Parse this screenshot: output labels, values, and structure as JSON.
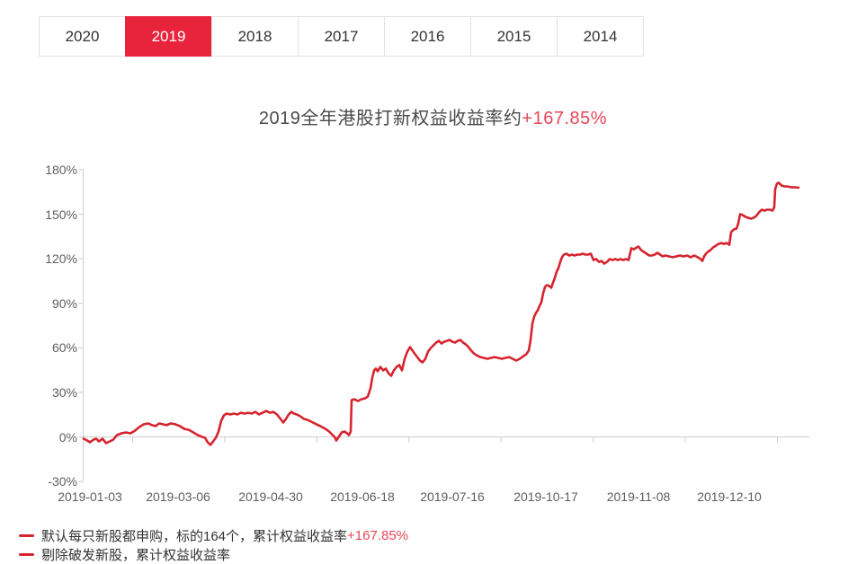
{
  "tabs": {
    "items": [
      {
        "label": "2020",
        "active": false
      },
      {
        "label": "2019",
        "active": true
      },
      {
        "label": "2018",
        "active": false
      },
      {
        "label": "2017",
        "active": false
      },
      {
        "label": "2016",
        "active": false
      },
      {
        "label": "2015",
        "active": false
      },
      {
        "label": "2014",
        "active": false
      }
    ]
  },
  "title": {
    "text": "2019全年港股打新权益收益率约",
    "value": "+167.85%"
  },
  "legend": {
    "items": [
      {
        "label": "默认每只新股都申购，标的164个，累计权益收益率",
        "value": "+167.85%",
        "partial": false
      },
      {
        "label": "剔除破发新股，累计权益收益率",
        "value": "",
        "partial": true
      }
    ]
  },
  "colors": {
    "accent_red": "#e8243d",
    "line_red": "#d6242f",
    "value_red": "#e64659",
    "axis_gray": "#cccccc",
    "text_dark": "#333333",
    "text_axis": "#5f5f5f"
  },
  "chart_data": {
    "type": "line",
    "title": "2019全年港股打新权益收益率约+167.85%",
    "series_name": "默认每只新股都申购，标的164个，累计权益收益率+167.85%",
    "final_value_pct": 167.85,
    "grid": false,
    "legend_position": "bottom-left",
    "y_axis": {
      "tick_labels": [
        "180%",
        "150%",
        "120%",
        "90%",
        "60%",
        "30%",
        "0%",
        "-30%"
      ],
      "min": -30,
      "max": 180,
      "step": 30,
      "unit": "%"
    },
    "x_axis": {
      "labels": [
        "2019-01-03",
        "2019-03-06",
        "2019-04-30",
        "2019-06-18",
        "2019-07-16",
        "2019-10-17",
        "2019-11-08",
        "2019-12-10"
      ]
    },
    "series": [
      {
        "name": "累计权益收益率",
        "color": "#d6242f",
        "x_unit": "plot-px",
        "y_unit": "percent",
        "points": [
          [
            93,
            -1.2
          ],
          [
            97,
            -2.4
          ],
          [
            100,
            -3.6
          ],
          [
            104,
            -1.8
          ],
          [
            107,
            -1.2
          ],
          [
            110,
            -3.0
          ],
          [
            114,
            -1.2
          ],
          [
            118,
            -4.2
          ],
          [
            122,
            -3.0
          ],
          [
            126,
            -1.8
          ],
          [
            130,
            1.2
          ],
          [
            135,
            2.4
          ],
          [
            140,
            3.0
          ],
          [
            145,
            2.4
          ],
          [
            150,
            4.2
          ],
          [
            155,
            6.7
          ],
          [
            160,
            8.5
          ],
          [
            165,
            9.1
          ],
          [
            169,
            7.9
          ],
          [
            173,
            7.3
          ],
          [
            177,
            9.1
          ],
          [
            181,
            8.5
          ],
          [
            185,
            7.9
          ],
          [
            190,
            9.1
          ],
          [
            195,
            8.5
          ],
          [
            200,
            7.3
          ],
          [
            205,
            5.4
          ],
          [
            210,
            4.8
          ],
          [
            215,
            3.0
          ],
          [
            220,
            1.2
          ],
          [
            225,
            0
          ],
          [
            228,
            -0.6
          ],
          [
            231,
            -3.6
          ],
          [
            234,
            -5.4
          ],
          [
            237,
            -3.0
          ],
          [
            240,
            -0.6
          ],
          [
            243,
            3.6
          ],
          [
            246,
            10.9
          ],
          [
            249,
            14.5
          ],
          [
            252,
            15.7
          ],
          [
            256,
            15.1
          ],
          [
            260,
            15.7
          ],
          [
            264,
            15.1
          ],
          [
            268,
            16.3
          ],
          [
            272,
            15.7
          ],
          [
            276,
            16.3
          ],
          [
            280,
            15.7
          ],
          [
            284,
            16.9
          ],
          [
            288,
            15.1
          ],
          [
            292,
            16.3
          ],
          [
            296,
            17.5
          ],
          [
            300,
            16.3
          ],
          [
            304,
            16.9
          ],
          [
            308,
            15.1
          ],
          [
            312,
            12.1
          ],
          [
            315,
            9.7
          ],
          [
            318,
            12.1
          ],
          [
            321,
            15.1
          ],
          [
            324,
            16.9
          ],
          [
            327,
            15.7
          ],
          [
            330,
            15.1
          ],
          [
            334,
            13.9
          ],
          [
            338,
            12.1
          ],
          [
            342,
            11.5
          ],
          [
            346,
            10.3
          ],
          [
            350,
            9.1
          ],
          [
            354,
            7.9
          ],
          [
            358,
            6.7
          ],
          [
            362,
            5.4
          ],
          [
            366,
            3.6
          ],
          [
            369,
            1.8
          ],
          [
            372,
            0
          ],
          [
            374,
            -2.4
          ],
          [
            376,
            -0.6
          ],
          [
            378,
            1.2
          ],
          [
            380,
            3.0
          ],
          [
            383,
            3.6
          ],
          [
            386,
            2.4
          ],
          [
            388,
            1.2
          ],
          [
            390,
            3.6
          ],
          [
            391,
            24.8
          ],
          [
            394,
            25.4
          ],
          [
            398,
            24.2
          ],
          [
            402,
            25.4
          ],
          [
            406,
            26.0
          ],
          [
            409,
            27.2
          ],
          [
            412,
            32.7
          ],
          [
            414,
            39.9
          ],
          [
            416,
            44.8
          ],
          [
            418,
            46.0
          ],
          [
            420,
            44.2
          ],
          [
            423,
            47.2
          ],
          [
            426,
            44.8
          ],
          [
            429,
            46.0
          ],
          [
            432,
            42.9
          ],
          [
            435,
            41.1
          ],
          [
            438,
            44.8
          ],
          [
            441,
            47.2
          ],
          [
            444,
            48.4
          ],
          [
            447,
            44.8
          ],
          [
            450,
            52.6
          ],
          [
            453,
            57.5
          ],
          [
            456,
            60.5
          ],
          [
            458,
            58.7
          ],
          [
            461,
            56.2
          ],
          [
            464,
            53.8
          ],
          [
            467,
            51.4
          ],
          [
            470,
            50.2
          ],
          [
            473,
            52.6
          ],
          [
            476,
            57.5
          ],
          [
            479,
            59.9
          ],
          [
            482,
            61.7
          ],
          [
            485,
            63.5
          ],
          [
            488,
            64.7
          ],
          [
            491,
            62.9
          ],
          [
            494,
            64.1
          ],
          [
            497,
            64.7
          ],
          [
            500,
            65.3
          ],
          [
            503,
            64.1
          ],
          [
            506,
            63.5
          ],
          [
            509,
            64.7
          ],
          [
            512,
            65.3
          ],
          [
            515,
            63.5
          ],
          [
            518,
            62.3
          ],
          [
            521,
            60.5
          ],
          [
            524,
            58.1
          ],
          [
            527,
            56.2
          ],
          [
            530,
            55.0
          ],
          [
            534,
            53.8
          ],
          [
            538,
            53.2
          ],
          [
            542,
            52.6
          ],
          [
            546,
            53.2
          ],
          [
            550,
            53.8
          ],
          [
            554,
            53.2
          ],
          [
            558,
            52.6
          ],
          [
            562,
            53.2
          ],
          [
            566,
            53.8
          ],
          [
            570,
            52.6
          ],
          [
            574,
            51.4
          ],
          [
            578,
            52.6
          ],
          [
            582,
            54.4
          ],
          [
            585,
            55.6
          ],
          [
            588,
            58.1
          ],
          [
            590,
            65.3
          ],
          [
            592,
            76.2
          ],
          [
            594,
            81.0
          ],
          [
            596,
            83.5
          ],
          [
            598,
            85.3
          ],
          [
            600,
            88.3
          ],
          [
            602,
            90.7
          ],
          [
            604,
            96.8
          ],
          [
            606,
            101.0
          ],
          [
            608,
            102.2
          ],
          [
            611,
            101.6
          ],
          [
            613,
            100.4
          ],
          [
            615,
            104.0
          ],
          [
            617,
            107.1
          ],
          [
            619,
            111.3
          ],
          [
            621,
            113.7
          ],
          [
            623,
            117.9
          ],
          [
            625,
            121.0
          ],
          [
            627,
            122.8
          ],
          [
            630,
            123.4
          ],
          [
            633,
            122.2
          ],
          [
            636,
            122.8
          ],
          [
            639,
            122.2
          ],
          [
            642,
            122.8
          ],
          [
            645,
            122.8
          ],
          [
            648,
            123.4
          ],
          [
            651,
            122.8
          ],
          [
            654,
            122.8
          ],
          [
            657,
            123.4
          ],
          [
            660,
            119.1
          ],
          [
            663,
            119.8
          ],
          [
            666,
            117.9
          ],
          [
            669,
            118.5
          ],
          [
            672,
            116.7
          ],
          [
            675,
            117.9
          ],
          [
            678,
            119.8
          ],
          [
            681,
            119.1
          ],
          [
            684,
            119.8
          ],
          [
            687,
            119.1
          ],
          [
            690,
            119.8
          ],
          [
            693,
            119.1
          ],
          [
            696,
            119.8
          ],
          [
            699,
            119.1
          ],
          [
            702,
            127.0
          ],
          [
            705,
            126.4
          ],
          [
            708,
            127.6
          ],
          [
            710,
            128.2
          ],
          [
            713,
            125.8
          ],
          [
            716,
            124.6
          ],
          [
            719,
            123.4
          ],
          [
            722,
            122.2
          ],
          [
            725,
            122.2
          ],
          [
            728,
            122.8
          ],
          [
            731,
            124.0
          ],
          [
            734,
            122.8
          ],
          [
            737,
            121.6
          ],
          [
            740,
            122.2
          ],
          [
            744,
            121.6
          ],
          [
            748,
            121.0
          ],
          [
            752,
            121.6
          ],
          [
            756,
            122.2
          ],
          [
            760,
            121.6
          ],
          [
            764,
            122.2
          ],
          [
            768,
            121.0
          ],
          [
            772,
            122.2
          ],
          [
            776,
            121.0
          ],
          [
            779,
            119.8
          ],
          [
            781,
            118.5
          ],
          [
            783,
            121.6
          ],
          [
            785,
            123.4
          ],
          [
            787,
            124.6
          ],
          [
            790,
            125.8
          ],
          [
            793,
            127.6
          ],
          [
            796,
            128.8
          ],
          [
            799,
            130.0
          ],
          [
            802,
            130.6
          ],
          [
            805,
            130.0
          ],
          [
            808,
            130.6
          ],
          [
            811,
            129.4
          ],
          [
            813,
            137.9
          ],
          [
            816,
            139.7
          ],
          [
            819,
            140.3
          ],
          [
            821,
            143.9
          ],
          [
            823,
            150.0
          ],
          [
            826,
            149.4
          ],
          [
            829,
            148.2
          ],
          [
            832,
            147.6
          ],
          [
            835,
            147.0
          ],
          [
            838,
            147.6
          ],
          [
            841,
            148.8
          ],
          [
            844,
            151.2
          ],
          [
            847,
            153.0
          ],
          [
            850,
            152.4
          ],
          [
            853,
            153.0
          ],
          [
            856,
            153.0
          ],
          [
            859,
            152.4
          ],
          [
            861,
            154.8
          ],
          [
            862,
            166.9
          ],
          [
            864,
            170.6
          ],
          [
            866,
            171.2
          ],
          [
            869,
            169.4
          ],
          [
            872,
            168.7
          ],
          [
            876,
            168.7
          ],
          [
            880,
            168.1
          ],
          [
            884,
            168.1
          ],
          [
            888,
            167.9
          ]
        ]
      }
    ]
  }
}
